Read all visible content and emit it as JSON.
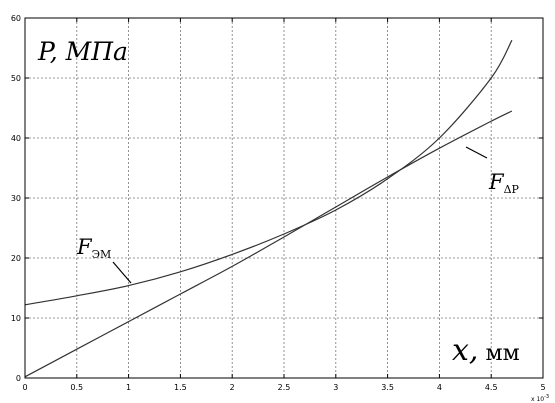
{
  "chart_data": {
    "type": "line",
    "xlabel": "x, мм",
    "ylabel": "P, МПа",
    "xlim": [
      0,
      0.005
    ],
    "ylim": [
      0,
      60
    ],
    "x_exponent_label": "x 10",
    "x_exponent_power": "-3",
    "x_ticks": [
      0,
      0.5,
      1,
      1.5,
      2,
      2.5,
      3,
      3.5,
      4,
      4.5,
      5
    ],
    "y_ticks": [
      0,
      10,
      20,
      30,
      40,
      50,
      60
    ],
    "grid": true,
    "colors": {
      "axes": "#000000",
      "grid": "#777777",
      "series_em": "#333333",
      "series_dp": "#333333"
    },
    "series": [
      {
        "key": "em",
        "label_main": "F",
        "label_sub": "ЭМ",
        "x": [
          0,
          0.0005,
          0.001,
          0.0015,
          0.002,
          0.0025,
          0.003,
          0.0035,
          0.004,
          0.0045,
          0.0047
        ],
        "y": [
          12.2,
          13.7,
          15.4,
          17.7,
          20.6,
          24.0,
          28.0,
          33.2,
          40.0,
          50.0,
          56.3
        ]
      },
      {
        "key": "dp",
        "label_main": "F",
        "label_sub": "ΔP",
        "x": [
          0,
          0.0005,
          0.001,
          0.0015,
          0.002,
          0.0025,
          0.003,
          0.0035,
          0.004,
          0.0045,
          0.0047
        ],
        "y": [
          0.2,
          4.8,
          9.4,
          14.0,
          18.6,
          23.5,
          28.5,
          33.5,
          38.3,
          42.8,
          44.5
        ]
      }
    ]
  }
}
